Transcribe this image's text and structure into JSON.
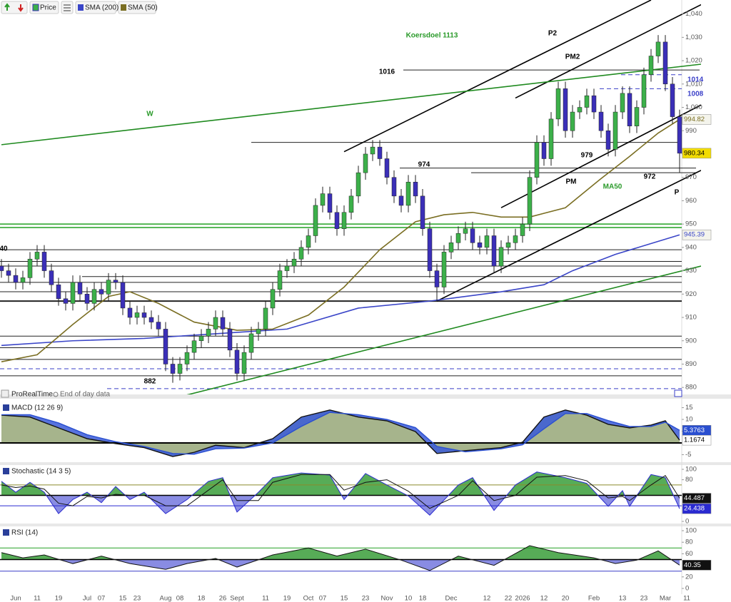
{
  "toolbar": {
    "items": [
      "Price",
      "SMA (200)",
      "SMA (50)"
    ],
    "footer": [
      "ProRealTime",
      "End of day data"
    ]
  },
  "chart_data": [
    {
      "type": "candlestick",
      "categories": [
        null,
        null,
        "Jun",
        null,
        null,
        "11",
        null,
        null,
        "19",
        null,
        null,
        null,
        "Jul",
        null,
        "07",
        null,
        null,
        "15",
        null,
        "23",
        null,
        null,
        null,
        "Aug",
        null,
        "08",
        null,
        null,
        "18",
        null,
        null,
        "26",
        null,
        "Sept",
        null,
        null,
        null,
        "11",
        null,
        null,
        "19",
        null,
        null,
        "Oct",
        null,
        "07",
        null,
        null,
        "15",
        null,
        null,
        "23",
        null,
        null,
        "Nov",
        null,
        null,
        "10",
        null,
        "18",
        null,
        null,
        null,
        "Dec",
        null,
        null,
        null,
        null,
        "12",
        null,
        null,
        "22",
        null,
        "2026",
        null,
        null,
        "12",
        null,
        null,
        "20",
        null,
        null,
        null,
        "Feb",
        null,
        null,
        null,
        "13",
        null,
        null,
        "23",
        null,
        null,
        "Mar",
        null,
        null,
        "11"
      ],
      "open": [
        932,
        930,
        928,
        925,
        927,
        935,
        938,
        930,
        924,
        918,
        916,
        925,
        920,
        916,
        922,
        920,
        926,
        925,
        914,
        910,
        912,
        910,
        908,
        905,
        890,
        886,
        890,
        895,
        900,
        902,
        905,
        910,
        905,
        896,
        886,
        895,
        903,
        905,
        914,
        922,
        930,
        932,
        935,
        940,
        945,
        958,
        963,
        955,
        948,
        955,
        962,
        972,
        980,
        983,
        978,
        970,
        962,
        958,
        968,
        962,
        948,
        930,
        923,
        938,
        942,
        946,
        948,
        942,
        940,
        945,
        932,
        940,
        942,
        945,
        950,
        970,
        985,
        978,
        995,
        1008,
        990,
        998,
        1000,
        1005,
        998,
        990,
        982,
        998,
        1006,
        992,
        1000,
        1014,
        1022,
        1028,
        1010,
        996,
        null
      ],
      "high": [
        935,
        933,
        931,
        930,
        938,
        941,
        941,
        933,
        927,
        921,
        928,
        928,
        923,
        925,
        925,
        929,
        929,
        928,
        917,
        915,
        915,
        913,
        911,
        908,
        893,
        893,
        898,
        903,
        905,
        908,
        913,
        913,
        908,
        899,
        898,
        906,
        908,
        917,
        925,
        933,
        935,
        938,
        943,
        948,
        961,
        966,
        966,
        958,
        958,
        965,
        975,
        983,
        986,
        986,
        981,
        973,
        965,
        971,
        971,
        965,
        951,
        933,
        941,
        945,
        949,
        951,
        951,
        945,
        948,
        948,
        943,
        945,
        948,
        953,
        973,
        988,
        988,
        998,
        1011,
        1011,
        1001,
        1003,
        1008,
        1008,
        1001,
        993,
        1001,
        1009,
        1009,
        1003,
        1017,
        1025,
        1031,
        1031,
        1013,
        999,
        null
      ],
      "low": [
        927,
        925,
        922,
        922,
        924,
        932,
        927,
        921,
        915,
        913,
        913,
        917,
        913,
        913,
        917,
        917,
        922,
        911,
        907,
        907,
        907,
        905,
        902,
        887,
        882,
        883,
        887,
        892,
        897,
        899,
        902,
        902,
        893,
        883,
        883,
        892,
        900,
        902,
        911,
        919,
        927,
        929,
        932,
        937,
        942,
        955,
        952,
        945,
        945,
        952,
        959,
        969,
        977,
        975,
        967,
        959,
        955,
        955,
        959,
        945,
        927,
        917,
        920,
        935,
        939,
        943,
        939,
        937,
        937,
        929,
        929,
        937,
        939,
        942,
        947,
        967,
        975,
        975,
        992,
        987,
        987,
        995,
        997,
        995,
        987,
        979,
        979,
        995,
        989,
        989,
        997,
        1011,
        1019,
        1007,
        993,
        972,
        null
      ],
      "close": [
        930,
        928,
        925,
        927,
        935,
        938,
        930,
        924,
        918,
        916,
        925,
        920,
        916,
        922,
        920,
        926,
        925,
        914,
        910,
        912,
        910,
        908,
        905,
        890,
        886,
        890,
        895,
        900,
        902,
        905,
        910,
        905,
        896,
        886,
        895,
        903,
        905,
        914,
        922,
        930,
        932,
        935,
        940,
        945,
        958,
        963,
        955,
        948,
        955,
        962,
        972,
        980,
        983,
        978,
        970,
        962,
        958,
        968,
        962,
        948,
        930,
        923,
        938,
        942,
        946,
        948,
        942,
        940,
        945,
        932,
        940,
        942,
        945,
        950,
        970,
        985,
        978,
        995,
        1008,
        990,
        998,
        1000,
        1005,
        998,
        990,
        982,
        998,
        1006,
        992,
        1000,
        1014,
        1022,
        1028,
        1010,
        996,
        980.34,
        null
      ],
      "up_color": "#3cb04a",
      "down_color": "#3b2fb8",
      "close_box_color": "#f2dc00",
      "series": [
        {
          "color": "#3a45c8",
          "x": [
            0,
            10,
            20,
            30,
            40,
            50,
            60,
            70,
            76,
            80,
            86,
            95
          ],
          "values": [
            898,
            900,
            901,
            903,
            905,
            914,
            917,
            921,
            924,
            930,
            937,
            945.39
          ]
        },
        {
          "color": "#7a6e22",
          "x": [
            0,
            5,
            10,
            15,
            18,
            22,
            27,
            33,
            38,
            43,
            48,
            53,
            58,
            62,
            66,
            70,
            74,
            79,
            84,
            88,
            92,
            95
          ],
          "values": [
            891,
            894,
            907,
            919,
            921,
            916,
            908,
            904.5,
            905,
            911,
            923,
            939,
            951,
            954,
            955,
            953,
            953,
            957,
            969.5,
            979,
            989,
            994.82
          ]
        }
      ],
      "ylim": [
        877,
        1046
      ],
      "yticks": [
        {
          "value": 1040,
          "label": "1,040"
        },
        {
          "value": 1030,
          "label": "1,030"
        },
        {
          "value": 1020,
          "label": "1,020"
        },
        {
          "value": 1010,
          "label": "1,010"
        },
        {
          "value": 1000,
          "label": "1,000"
        },
        990,
        980,
        970,
        960,
        950,
        940,
        930,
        920,
        910,
        900,
        890,
        880
      ],
      "hlines": [
        {
          "value": 1016,
          "label": "1016"
        },
        985,
        {
          "value": 974,
          "label": "974"
        },
        972,
        939,
        934,
        932,
        927.5,
        925,
        921,
        917,
        902,
        897,
        892,
        885
      ],
      "hline_color": "#222",
      "dashed_hlines": [
        {
          "value": 1014,
          "label": "1014"
        },
        {
          "value": 1008,
          "label": "1008"
        },
        888,
        879.5
      ],
      "dashed_color": "#3a3fc8",
      "green_hlines": [
        950,
        948.5
      ],
      "green_color": "#22a022",
      "trendlines": [
        {
          "color": "#000",
          "points": [
            [
              48,
              981
            ],
            [
              91,
              1046
            ]
          ]
        },
        {
          "color": "#000",
          "points": [
            [
              72,
              1004
            ],
            [
              98,
              1044
            ]
          ]
        },
        {
          "color": "#000",
          "points": [
            [
              70,
              957
            ],
            [
              98,
              1001
            ]
          ]
        },
        {
          "color": "#000",
          "points": [
            [
              61,
              917
            ],
            [
              98,
              973
            ]
          ]
        },
        {
          "color": "#1f8a1f",
          "points": [
            [
              0,
              984
            ],
            [
              98,
              1018.5
            ]
          ]
        },
        {
          "color": "#1f8a1f",
          "points": [
            [
              23,
              874.5
            ],
            [
              98,
              932
            ]
          ]
        }
      ],
      "annotations": [
        {
          "text": "Koersdoel 1113",
          "color": "#2a9a2a"
        },
        {
          "text": "P2"
        },
        {
          "text": "PM2"
        },
        {
          "text": "W",
          "color": "#2a9a2a"
        },
        {
          "text": "979"
        },
        {
          "text": "PM"
        },
        {
          "text": "MA50",
          "color": "#2a9a2a"
        },
        {
          "text": "972"
        },
        {
          "text": "P"
        },
        {
          "text": "882"
        },
        {
          "text": "40"
        }
      ]
    },
    {
      "type": "macd",
      "title": "MACD (12 26 9)",
      "ylim": [
        -7.3,
        17.9
      ],
      "yticks": [
        15,
        10,
        5,
        0,
        -5
      ],
      "fill_color": "#a6b48c",
      "spread_color": "#3a5bd8",
      "series": [
        {
          "color": "#111",
          "x": [
            0,
            4,
            8,
            12,
            16,
            20,
            24,
            27,
            30,
            34,
            38,
            42,
            46,
            50,
            54,
            58,
            61,
            65,
            70,
            73,
            76,
            79,
            82,
            85,
            88,
            91,
            93,
            95
          ],
          "values": [
            11.8,
            11,
            6.4,
            1.8,
            -0.3,
            -2,
            -5.8,
            -4,
            -1,
            -2,
            1.8,
            11,
            14,
            11,
            9.4,
            4.8,
            -4.5,
            -3.3,
            -2,
            0.3,
            11,
            14,
            11.8,
            7.9,
            6.4,
            7.6,
            9.4,
            1.1674
          ]
        },
        {
          "color": "#2a4fd0",
          "x": [
            0,
            4,
            8,
            12,
            16,
            20,
            24,
            27,
            30,
            34,
            38,
            42,
            46,
            50,
            54,
            58,
            61,
            65,
            70,
            73,
            76,
            79,
            82,
            85,
            88,
            91,
            93,
            95
          ],
          "values": [
            12,
            12,
            8.5,
            3.5,
            0.5,
            -1.5,
            -4.5,
            -4.8,
            -2.5,
            -2.2,
            0,
            7,
            13,
            12,
            10,
            6.5,
            -1.5,
            -3.8,
            -2.5,
            -0.8,
            6,
            12.5,
            12.5,
            9.5,
            7,
            7,
            8.8,
            5.3763
          ]
        }
      ]
    },
    {
      "type": "oscillator",
      "title": "Stochastic (14 3 5)",
      "ylim": [
        0,
        100
      ],
      "yticks": [
        100,
        80,
        0
      ],
      "levels": [
        70,
        50,
        30
      ],
      "level_colors": [
        "#8a8a2a",
        "#000",
        "#2a2ad0"
      ],
      "fill_up": "#3a9e3a",
      "fill_down": "#3a3fd0",
      "series": [
        {
          "color": "#2a2ad0",
          "x": [
            0,
            2,
            4,
            6,
            8,
            10,
            12,
            14,
            16,
            18,
            20,
            23,
            26,
            29,
            31,
            33,
            36,
            38,
            42,
            46,
            48,
            51,
            54,
            57,
            60,
            64,
            66,
            69,
            72,
            75,
            79,
            82,
            85,
            87,
            88,
            91,
            93,
            95
          ],
          "values": [
            77,
            56,
            75,
            56,
            15,
            42,
            56,
            36,
            67,
            42,
            56,
            15,
            42,
            77,
            84,
            18,
            56,
            84,
            93,
            89,
            42,
            92,
            70,
            49,
            12,
            70,
            84,
            21,
            70,
            95,
            84,
            73,
            29,
            59,
            29,
            90,
            84,
            24.438
          ]
        },
        {
          "color": "#111",
          "x": [
            0,
            2,
            4,
            6,
            8,
            10,
            12,
            14,
            16,
            18,
            20,
            23,
            26,
            29,
            31,
            33,
            36,
            38,
            42,
            46,
            48,
            51,
            54,
            57,
            60,
            64,
            66,
            69,
            72,
            75,
            79,
            82,
            85,
            87,
            88,
            91,
            93,
            95
          ],
          "values": [
            70,
            65,
            68,
            62,
            35,
            30,
            48,
            45,
            52,
            50,
            50,
            30,
            30,
            60,
            80,
            40,
            40,
            75,
            90,
            90,
            60,
            75,
            80,
            58,
            25,
            50,
            78,
            40,
            50,
            85,
            88,
            78,
            45,
            48,
            40,
            70,
            88,
            44.487
          ]
        }
      ]
    },
    {
      "type": "oscillator",
      "title": "RSI (14)",
      "ylim": [
        0,
        100
      ],
      "yticks": [
        100,
        80,
        60,
        20,
        0
      ],
      "levels": [
        70,
        50,
        30
      ],
      "level_colors": [
        "#22a022",
        "#000",
        "#3a3fc8"
      ],
      "fill_up": "#3a9e3a",
      "fill_down": "#3a3fd0",
      "series": [
        {
          "color": "#111",
          "x": [
            0,
            3,
            6,
            10,
            14,
            18,
            23,
            26,
            30,
            33,
            38,
            43,
            47,
            51,
            56,
            60,
            64,
            69,
            74,
            78,
            83,
            86,
            89,
            92,
            95
          ],
          "values": [
            62,
            53,
            58,
            43,
            56,
            43,
            33,
            43,
            52,
            37,
            58,
            70,
            56,
            68,
            49,
            31,
            56,
            40,
            74,
            62,
            53,
            43,
            49,
            65,
            40.35
          ]
        }
      ]
    }
  ]
}
